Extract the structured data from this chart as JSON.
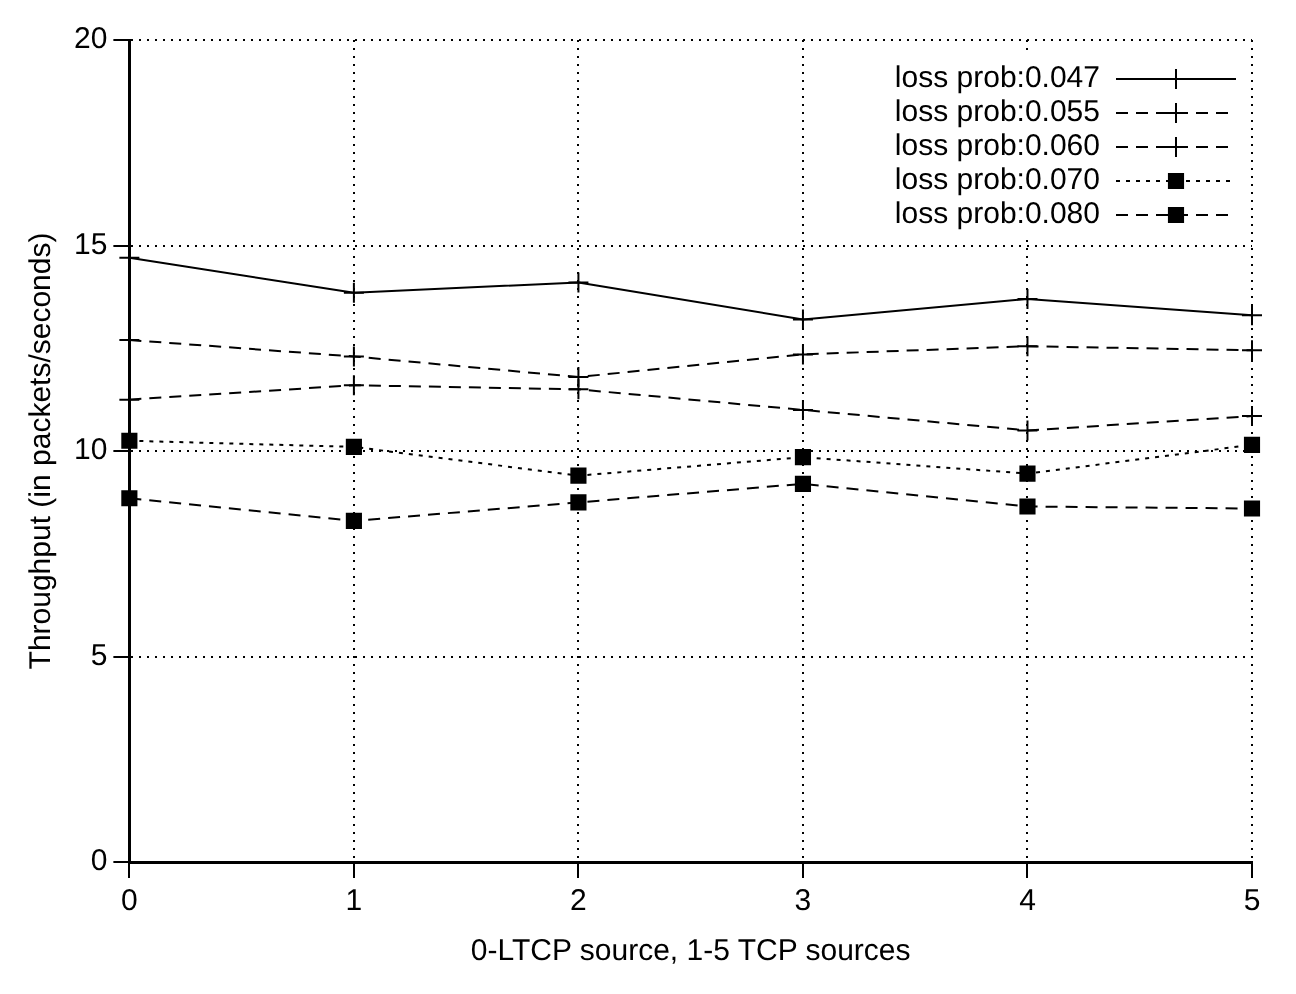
{
  "chart_data": {
    "type": "line",
    "xlabel": "0-LTCP source, 1-5 TCP sources",
    "ylabel": "Throughput (in packets/seconds)",
    "categories": [
      "0",
      "1",
      "2",
      "3",
      "4",
      "5"
    ],
    "ylim": [
      0,
      20
    ],
    "yticks": [
      0,
      5,
      10,
      15,
      20
    ],
    "grid": true,
    "legend": "top right",
    "series": [
      {
        "name": "loss prob:0.047",
        "color": "#000000",
        "marker": "cross",
        "line_style": "solid",
        "values": [
          14.7,
          13.85,
          14.1,
          13.2,
          13.7,
          13.3
        ]
      },
      {
        "name": "loss prob:0.055",
        "color": "#000000",
        "marker": "cross",
        "line_style": "dashed",
        "values": [
          12.7,
          12.3,
          11.8,
          12.35,
          12.55,
          12.45
        ]
      },
      {
        "name": "loss prob:0.060",
        "color": "#000000",
        "marker": "cross",
        "line_style": "dashed",
        "values": [
          11.25,
          11.6,
          11.5,
          11.0,
          10.5,
          10.85
        ]
      },
      {
        "name": "loss prob:0.070",
        "color": "#000000",
        "marker": "square",
        "line_style": "dotted",
        "values": [
          10.25,
          10.1,
          9.4,
          9.85,
          9.45,
          10.15
        ]
      },
      {
        "name": "loss prob:0.080",
        "color": "#000000",
        "marker": "square",
        "line_style": "dashed",
        "values": [
          8.85,
          8.3,
          8.75,
          9.2,
          8.65,
          8.6
        ]
      }
    ]
  }
}
